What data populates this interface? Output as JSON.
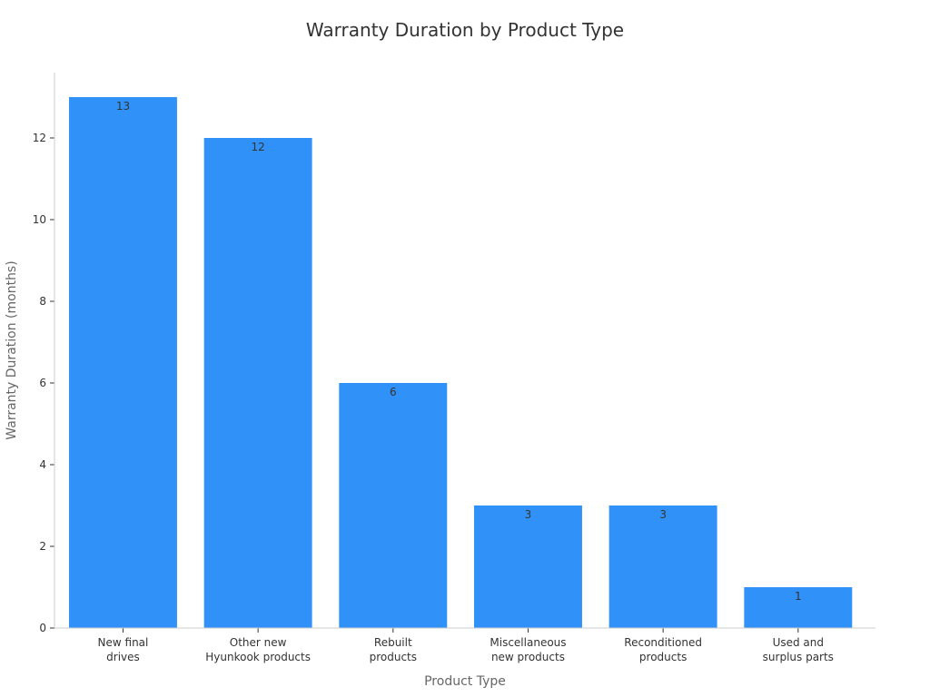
{
  "chart_data": {
    "type": "bar",
    "title": "Warranty Duration by Product Type",
    "xlabel": "Product Type",
    "ylabel": "Warranty Duration (months)",
    "categories": [
      "New final drives",
      "Other new Hyunkook products",
      "Rebuilt products",
      "Miscellaneous new products",
      "Reconditioned products",
      "Used and surplus parts"
    ],
    "category_lines": [
      [
        "New final",
        "drives"
      ],
      [
        "Other new",
        "Hyunkook products"
      ],
      [
        "Rebuilt",
        "products"
      ],
      [
        "Miscellaneous",
        "new products"
      ],
      [
        "Reconditioned",
        "products"
      ],
      [
        "Used and",
        "surplus parts"
      ]
    ],
    "values": [
      13,
      12,
      6,
      3,
      3,
      1
    ],
    "ylim": [
      0,
      13.6
    ],
    "yticks": [
      0,
      2,
      4,
      6,
      8,
      10,
      12
    ],
    "grid": false,
    "bar_color": "#3092f9"
  }
}
